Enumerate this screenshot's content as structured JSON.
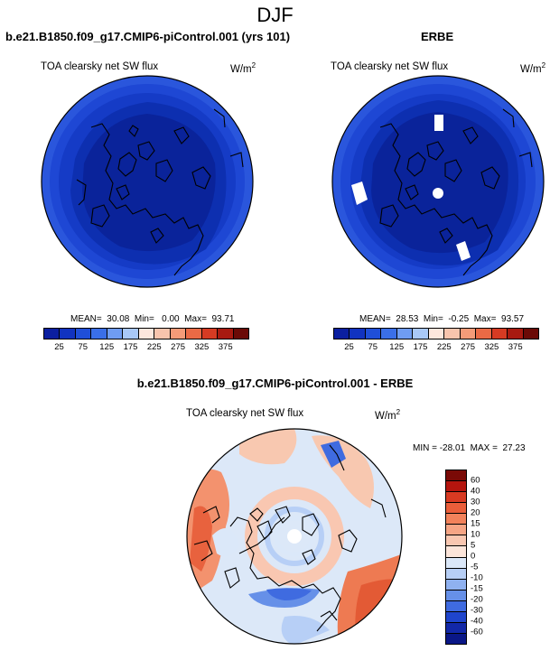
{
  "figure": {
    "season": "DJF",
    "variable": "TOA clearsky net SW flux",
    "units_base": "W/m",
    "units_exp": "2"
  },
  "panels": {
    "model": {
      "title": "b.e21.B1850.f09_g17.CMIP6-piControl.001 (yrs 101)",
      "subtitle": "TOA clearsky net SW flux",
      "stats": "MEAN=  30.08  Min=   0.00  Max=  93.71"
    },
    "obs": {
      "title": "ERBE",
      "subtitle": "TOA clearsky net SW flux",
      "stats": "MEAN=  28.53  Min=  -0.25  Max=  93.57"
    },
    "diff": {
      "title": "b.e21.B1850.f09_g17.CMIP6-piControl.001 - ERBE",
      "subtitle": "TOA clearsky net SW flux",
      "stats": "MIN = -28.01  MAX =  27.23"
    }
  },
  "colorbars": {
    "abs_labels": [
      "25",
      "75",
      "125",
      "175",
      "225",
      "275",
      "325",
      "375"
    ],
    "abs_colors": [
      "#0b1fa0",
      "#1133c0",
      "#1f4fd8",
      "#3a6fe8",
      "#6f9cf2",
      "#a9c8f7",
      "#fde7dd",
      "#f8c4ad",
      "#f59b78",
      "#ea6a45",
      "#d63b23",
      "#a81a10",
      "#6b0a06"
    ],
    "diff_labels": [
      "60",
      "40",
      "30",
      "20",
      "15",
      "10",
      "5",
      "0",
      "-5",
      "-10",
      "-15",
      "-20",
      "-30",
      "-40",
      "-60"
    ],
    "diff_colors": [
      "#7a0a06",
      "#b5150e",
      "#d83a22",
      "#ea5e3a",
      "#f2825b",
      "#f6a585",
      "#f9c7b1",
      "#fce5da",
      "#dbe8f9",
      "#b7cff6",
      "#8fb1f0",
      "#6690e8",
      "#3f6be0",
      "#1f45cc",
      "#1228a8",
      "#0a1787"
    ]
  },
  "map_colors": {
    "model_rings": [
      "#2a56dc",
      "#1e47d4",
      "#153bc6",
      "#0d2fb0",
      "#0a239a"
    ],
    "obs_rings": [
      "#2a56dc",
      "#1e47d4",
      "#153bc6",
      "#0d2fb0",
      "#0a239a"
    ],
    "diff_base": "#dce8f8"
  }
}
